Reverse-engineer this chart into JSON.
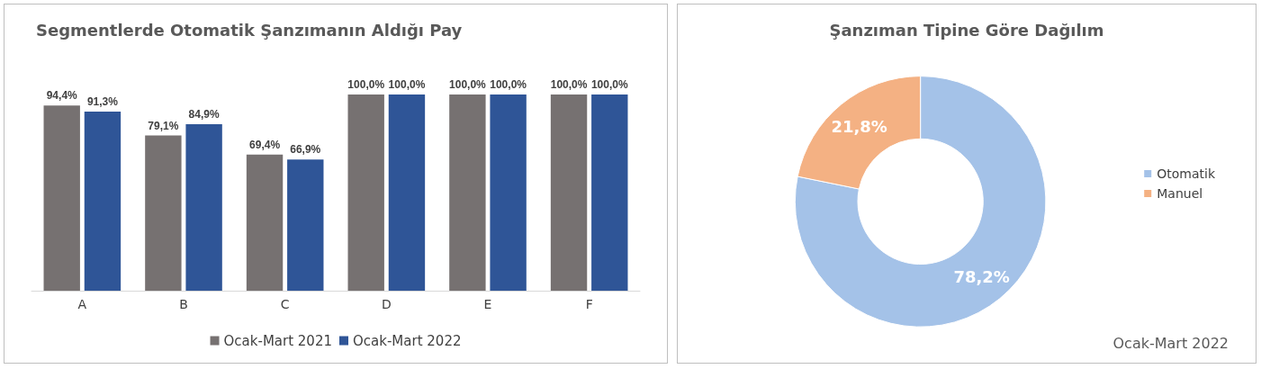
{
  "chart_data": [
    {
      "type": "bar",
      "title": "Segmentlerde Otomatik Şanzımanın Aldığı Pay",
      "categories": [
        "A",
        "B",
        "C",
        "D",
        "E",
        "F"
      ],
      "series": [
        {
          "name": "Ocak-Mart 2021",
          "color": "#767171",
          "values": [
            94.4,
            79.1,
            69.4,
            100.0,
            100.0,
            100.0
          ],
          "value_labels": [
            "94,4%",
            "79,1%",
            "69,4%",
            "100,0%",
            "100,0%",
            "100,0%"
          ]
        },
        {
          "name": "Ocak-Mart 2022",
          "color": "#2f5597",
          "values": [
            91.3,
            84.9,
            66.9,
            100.0,
            100.0,
            100.0
          ],
          "value_labels": [
            "91,3%",
            "84,9%",
            "66,9%",
            "100,0%",
            "100,0%",
            "100,0%"
          ]
        }
      ],
      "legend": "bottom"
    },
    {
      "type": "donut",
      "title": "Şanzıman Tipine Göre Dağılım",
      "categories": [
        "Otomatik",
        "Manuel"
      ],
      "values": [
        78.2,
        21.8
      ],
      "colors": [
        "#a4c2e8",
        "#f4b183"
      ],
      "value_labels": [
        "78,2%",
        "21,8%"
      ],
      "legend": "right",
      "annotations": [
        "Ocak-Mart 2022"
      ]
    }
  ]
}
